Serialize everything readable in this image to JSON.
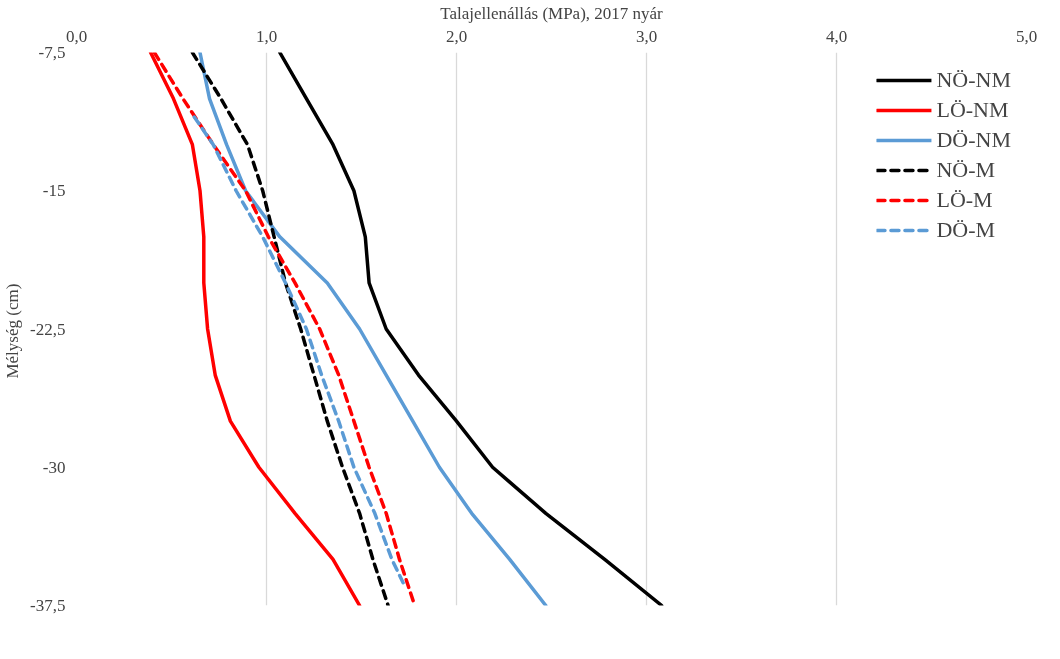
{
  "chart_data": {
    "type": "line",
    "xlabel": "Talajellenállás (MPa), 2017 nyár",
    "ylabel": "Mélység  (cm)",
    "xlim": [
      0,
      5
    ],
    "xticks": [
      {
        "value": 0,
        "label": "0,0"
      },
      {
        "value": 1,
        "label": "1,0"
      },
      {
        "value": 2,
        "label": "2,0"
      },
      {
        "value": 3,
        "label": "3,0"
      },
      {
        "value": 4,
        "label": "4,0"
      },
      {
        "value": 5,
        "label": "5,0"
      }
    ],
    "ylim": [
      -37.5,
      -7.5
    ],
    "yticks": [
      {
        "value": -7.5,
        "label": "-7,5"
      },
      -15,
      {
        "value": -22.5,
        "label": "-22,5"
      },
      -30,
      {
        "value": -37.5,
        "label": "-37,5"
      }
    ],
    "grid": "x",
    "legend": "top right",
    "marker": "none",
    "series": [
      {
        "name": "NÖ-NM",
        "color": "#000000",
        "line_style": "solid",
        "x": [
          1.07,
          1.21,
          1.35,
          1.46,
          1.52,
          1.54,
          1.63,
          1.8,
          2.0,
          2.19,
          2.47,
          2.78,
          3.08
        ],
        "values": [
          -7.5,
          -10,
          -12.5,
          -15,
          -17.5,
          -20,
          -22.5,
          -25,
          -27.5,
          -30,
          -32.5,
          -35,
          -37.5
        ]
      },
      {
        "name": "LÖ-NM",
        "color": "#ff0000",
        "line_style": "solid",
        "x": [
          0.39,
          0.51,
          0.61,
          0.65,
          0.67,
          0.67,
          0.69,
          0.73,
          0.81,
          0.96,
          1.15,
          1.35,
          1.49
        ],
        "values": [
          -7.5,
          -10,
          -12.5,
          -15,
          -17.5,
          -20,
          -22.5,
          -25,
          -27.5,
          -30,
          -32.5,
          -35,
          -37.5
        ]
      },
      {
        "name": "DÖ-NM",
        "color": "#5b9bd5",
        "line_style": "solid",
        "x": [
          0.65,
          0.7,
          0.79,
          0.89,
          1.07,
          1.32,
          1.49,
          1.63,
          1.77,
          1.91,
          2.08,
          2.28,
          2.47
        ],
        "values": [
          -7.5,
          -10,
          -12.5,
          -15,
          -17.5,
          -20,
          -22.5,
          -25,
          -27.5,
          -30,
          -32.5,
          -35,
          -37.5
        ]
      },
      {
        "name": "NÖ-M",
        "color": "#000000",
        "line_style": "dashed",
        "x": [
          0.61,
          0.76,
          0.9,
          0.98,
          1.04,
          1.1,
          1.18,
          1.25,
          1.32,
          1.4,
          1.49,
          1.56,
          1.64
        ],
        "values": [
          -7.5,
          -10,
          -12.5,
          -15,
          -17.5,
          -20,
          -22.5,
          -25,
          -27.5,
          -30,
          -32.5,
          -35,
          -37.5
        ]
      },
      {
        "name": "LÖ-M",
        "color": "#ff0000",
        "line_style": "dashed",
        "x": [
          0.41,
          0.56,
          0.72,
          0.89,
          1.01,
          1.15,
          1.28,
          1.38,
          1.46,
          1.54,
          1.63,
          1.7,
          1.78
        ],
        "values": [
          -7.5,
          -10,
          -12.5,
          -15,
          -17.5,
          -20,
          -22.5,
          -25,
          -27.5,
          -30,
          -32.5,
          -35,
          -37.5
        ]
      },
      {
        "name": "DÖ-M",
        "color": "#5b9bd5",
        "line_style": "dashed",
        "x": [
          0.62,
          0.72,
          0.84,
          0.98,
          1.1,
          1.21,
          1.29,
          1.38,
          1.46,
          1.57,
          1.66,
          1.73
        ],
        "values": [
          -11,
          -12.5,
          -15,
          -17.5,
          -20,
          -22.5,
          -25,
          -27.5,
          -30,
          -32.5,
          -35,
          -36.5
        ]
      }
    ]
  }
}
